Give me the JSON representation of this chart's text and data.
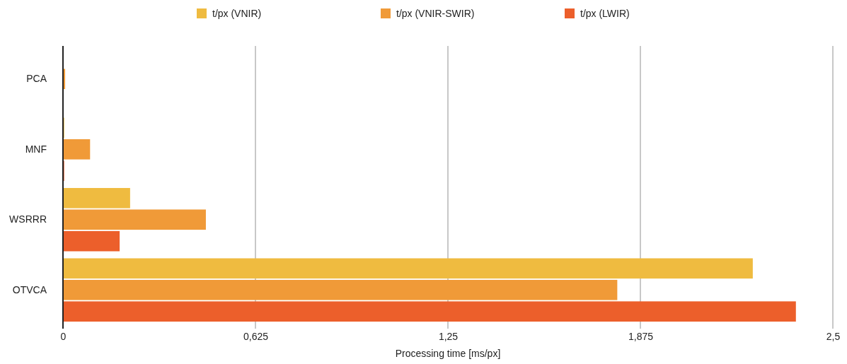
{
  "chart_data": {
    "type": "bar",
    "orientation": "horizontal",
    "xlabel": "Processing time [ms/px]",
    "categories": [
      "PCA",
      "MNF",
      "WSRRR",
      "OTVCA"
    ],
    "series": [
      {
        "name": "t/px (VNIR)",
        "color": "#efbb40",
        "values": [
          0,
          0.004,
          0.218,
          2.24
        ]
      },
      {
        "name": "t/px (VNIR-SWIR)",
        "color": "#f09a38",
        "values": [
          0.007,
          0.088,
          0.464,
          1.8
        ]
      },
      {
        "name": "t/px (LWIR)",
        "color": "#ec5f2b",
        "values": [
          0,
          0.004,
          0.184,
          2.38
        ]
      }
    ],
    "xlim": [
      0,
      2.5
    ],
    "xticks": [
      0,
      {
        "value": 0.625,
        "label": "0,625"
      },
      {
        "value": 1.25,
        "label": "1,25"
      },
      {
        "value": 1.875,
        "label": "1,875"
      },
      {
        "value": 2.5,
        "label": "2,5"
      }
    ],
    "grid": "x",
    "legend": "top"
  }
}
